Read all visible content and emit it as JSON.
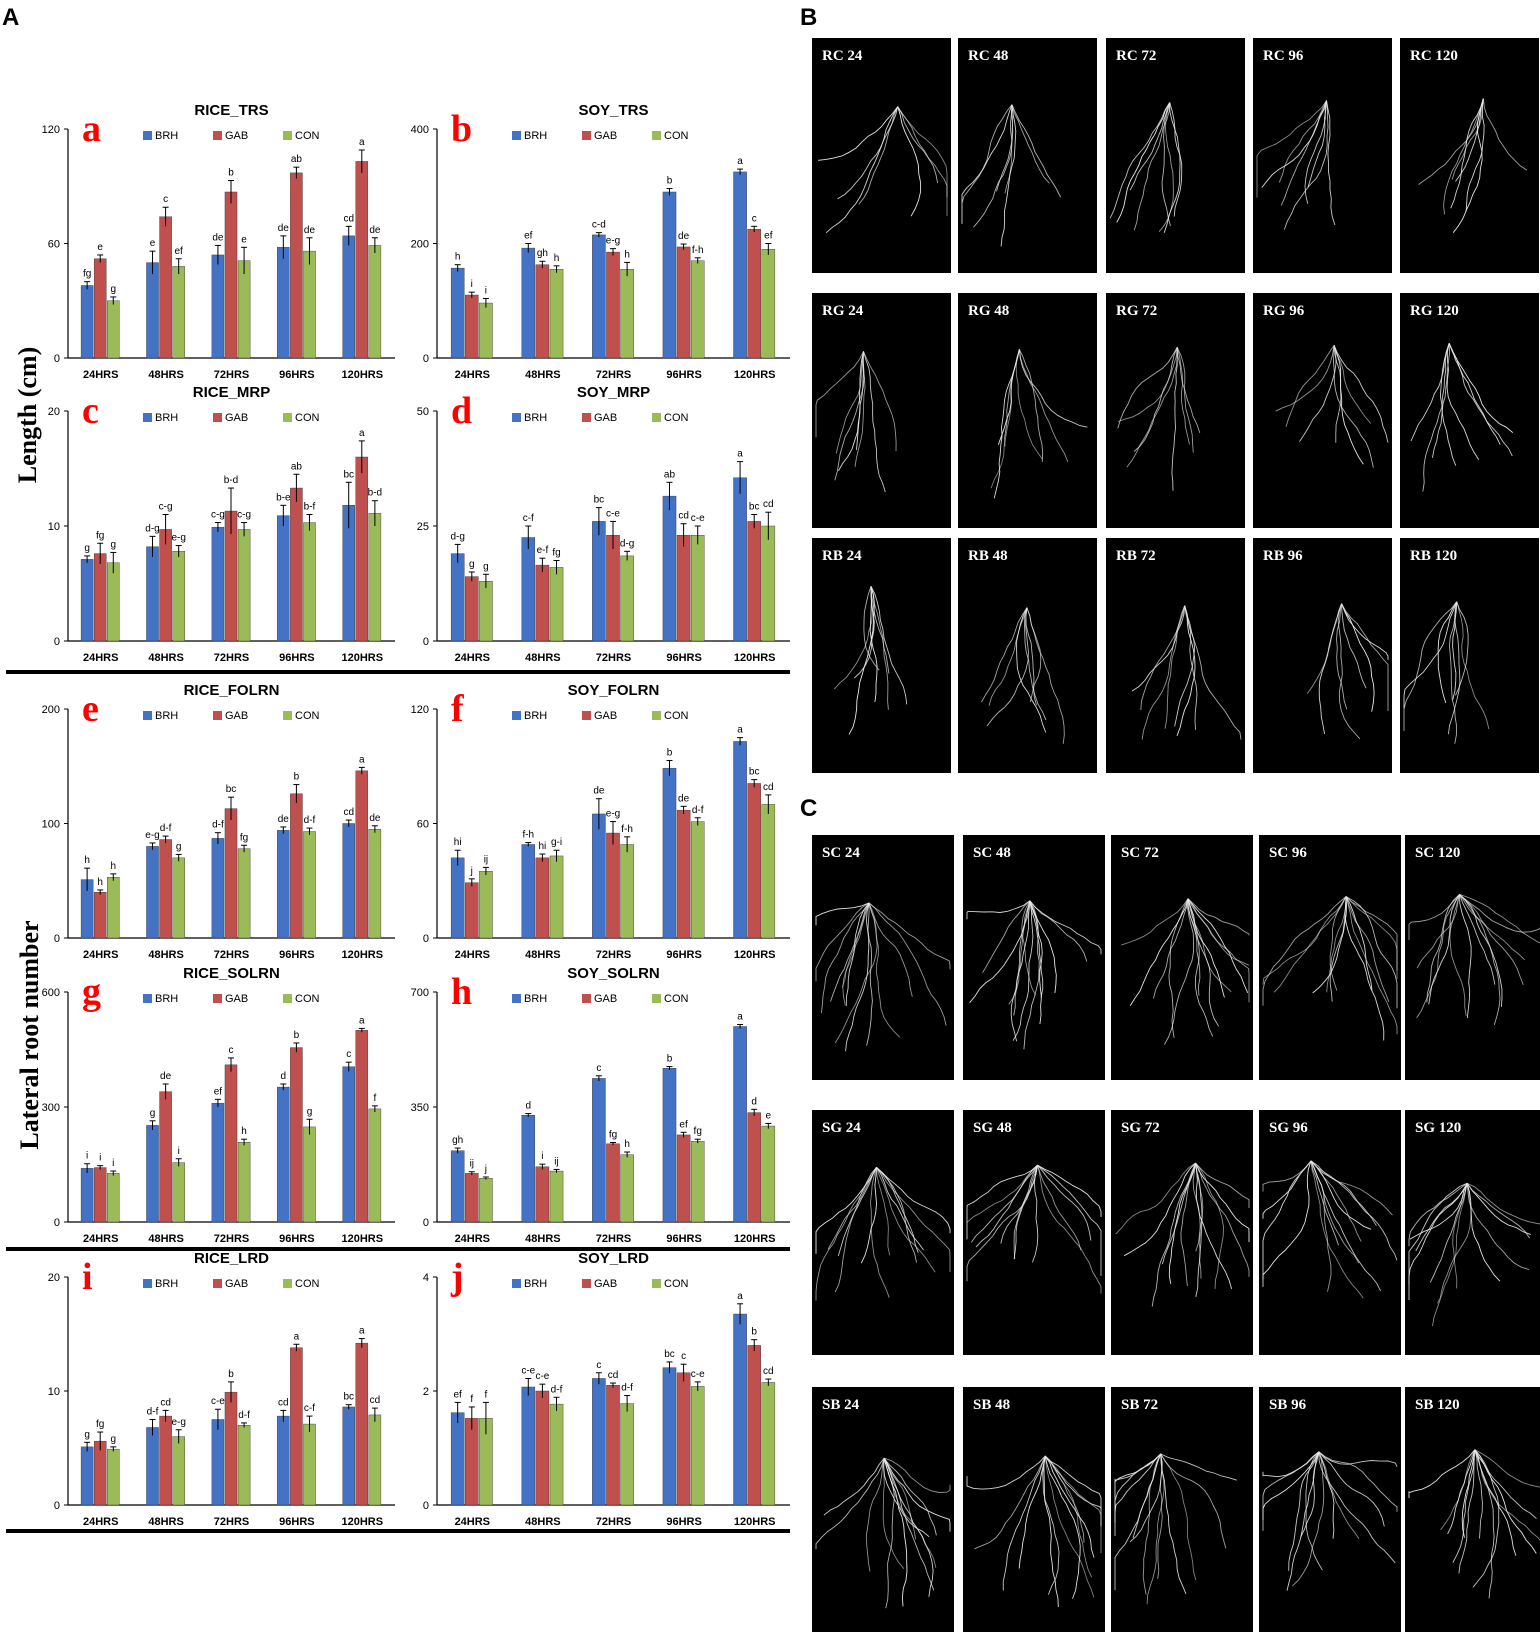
{
  "figure": {
    "panel_labels": [
      "A",
      "B",
      "C"
    ],
    "y_labels": [
      "Length (cm)",
      "Lateral root number"
    ],
    "legend": [
      "BRH",
      "GAB",
      "CON"
    ],
    "colors": {
      "BRH": "#4472C4",
      "GAB": "#C0504D",
      "CON": "#9BBB59",
      "letter": "#FF0000"
    },
    "rice_image_labels": [
      "RC 24",
      "RC 48",
      "RC 72",
      "RC 96",
      "RC 120",
      "RG 24",
      "RG 48",
      "RG 72",
      "RG 96",
      "RG 120",
      "RB 24",
      "RB 48",
      "RB 72",
      "RB 96",
      "RB 120"
    ],
    "soy_image_labels": [
      "SC 24",
      "SC 48",
      "SC 72",
      "SC 96",
      "SC 120",
      "SG 24",
      "SG 48",
      "SG 72",
      "SG 96",
      "SG 120",
      "SB 24",
      "SB 48",
      "SB 72",
      "SB 96",
      "SB 120"
    ]
  },
  "chart_data": [
    {
      "id": "a",
      "type": "bar",
      "title": "RICE_TRS",
      "categories": [
        "24HRS",
        "48HRS",
        "72HRS",
        "96HRS",
        "120HRS"
      ],
      "ylim": [
        0,
        120
      ],
      "yticks": [
        0,
        60,
        120
      ],
      "series": [
        {
          "name": "BRH",
          "values": [
            38,
            50,
            54,
            58,
            64
          ],
          "err": [
            2,
            6,
            5,
            6,
            5
          ],
          "labels": [
            "fg",
            "e",
            "de",
            "de",
            "cd"
          ]
        },
        {
          "name": "GAB",
          "values": [
            52,
            74,
            87,
            97,
            103
          ],
          "err": [
            2,
            5,
            6,
            3,
            6
          ],
          "labels": [
            "e",
            "c",
            "b",
            "ab",
            "a"
          ]
        },
        {
          "name": "CON",
          "values": [
            30,
            48,
            51,
            56,
            59
          ],
          "err": [
            2,
            4,
            7,
            7,
            4
          ],
          "labels": [
            "g",
            "ef",
            "e",
            "de",
            "de"
          ]
        }
      ]
    },
    {
      "id": "b",
      "type": "bar",
      "title": "SOY_TRS",
      "categories": [
        "24HRS",
        "48HRS",
        "72HRS",
        "96HRS",
        "120HRS"
      ],
      "ylim": [
        0,
        400
      ],
      "yticks": [
        0,
        200,
        400
      ],
      "series": [
        {
          "name": "BRH",
          "values": [
            157,
            192,
            215,
            290,
            325
          ],
          "err": [
            6,
            8,
            4,
            6,
            5
          ],
          "labels": [
            "h",
            "ef",
            "c-d",
            "b",
            "a"
          ]
        },
        {
          "name": "GAB",
          "values": [
            110,
            163,
            185,
            194,
            225
          ],
          "err": [
            5,
            6,
            6,
            5,
            5
          ],
          "labels": [
            "i",
            "gh",
            "e-g",
            "de",
            "c"
          ]
        },
        {
          "name": "CON",
          "values": [
            96,
            155,
            155,
            170,
            190
          ],
          "err": [
            8,
            6,
            12,
            5,
            10
          ],
          "labels": [
            "i",
            "h",
            "h",
            "f-h",
            "ef"
          ]
        }
      ]
    },
    {
      "id": "c",
      "type": "bar",
      "title": "RICE_MRP",
      "categories": [
        "24HRS",
        "48HRS",
        "72HRS",
        "96HRS",
        "120HRS"
      ],
      "ylim": [
        0,
        20
      ],
      "yticks": [
        0,
        10,
        20
      ],
      "series": [
        {
          "name": "BRH",
          "values": [
            7.1,
            8.2,
            9.9,
            10.9,
            11.8
          ],
          "err": [
            0.3,
            0.9,
            0.4,
            0.9,
            2.0
          ],
          "labels": [
            "g",
            "d-g",
            "c-g",
            "b-e",
            "bc"
          ]
        },
        {
          "name": "GAB",
          "values": [
            7.6,
            9.7,
            11.3,
            13.3,
            16.0
          ],
          "err": [
            0.9,
            1.3,
            2.0,
            1.2,
            1.4
          ],
          "labels": [
            "fg",
            "c-g",
            "b-d",
            "ab",
            "a"
          ]
        },
        {
          "name": "CON",
          "values": [
            6.8,
            7.8,
            9.7,
            10.3,
            11.1
          ],
          "err": [
            0.9,
            0.5,
            0.6,
            0.7,
            1.1
          ],
          "labels": [
            "g",
            "e-g",
            "c-g",
            "b-f",
            "b-d"
          ]
        }
      ]
    },
    {
      "id": "d",
      "type": "bar",
      "title": "SOY_MRP",
      "categories": [
        "24HRS",
        "48HRS",
        "72HRS",
        "96HRS",
        "120HRS"
      ],
      "ylim": [
        0,
        50
      ],
      "yticks": [
        0,
        25,
        50
      ],
      "series": [
        {
          "name": "BRH",
          "values": [
            19,
            22.5,
            26,
            31.5,
            35.5
          ],
          "err": [
            2,
            2.5,
            3,
            3,
            3.5
          ],
          "labels": [
            "d-g",
            "c-f",
            "bc",
            "ab",
            "a"
          ]
        },
        {
          "name": "GAB",
          "values": [
            14,
            16.5,
            23,
            23,
            26
          ],
          "err": [
            1,
            1.5,
            3,
            2.5,
            1.5
          ],
          "labels": [
            "g",
            "e-f",
            "c-e",
            "cd",
            "bc"
          ]
        },
        {
          "name": "CON",
          "values": [
            13,
            16,
            18.5,
            23,
            25
          ],
          "err": [
            1.5,
            1.5,
            1,
            2,
            3
          ],
          "labels": [
            "g",
            "fg",
            "d-g",
            "c-e",
            "cd"
          ]
        }
      ]
    },
    {
      "id": "e",
      "type": "bar",
      "title": "RICE_FOLRN",
      "categories": [
        "24HRS",
        "48HRS",
        "72HRS",
        "96HRS",
        "120HRS"
      ],
      "ylim": [
        0,
        200
      ],
      "yticks": [
        0,
        100,
        200
      ],
      "series": [
        {
          "name": "BRH",
          "values": [
            51,
            80,
            87,
            94,
            100
          ],
          "err": [
            10,
            3,
            5,
            3,
            3
          ],
          "labels": [
            "h",
            "e-g",
            "d-f",
            "de",
            "cd"
          ]
        },
        {
          "name": "GAB",
          "values": [
            40,
            86,
            113,
            126,
            146
          ],
          "err": [
            2,
            3,
            10,
            8,
            3
          ],
          "labels": [
            "h",
            "d-f",
            "bc",
            "b",
            "a"
          ]
        },
        {
          "name": "CON",
          "values": [
            53,
            70,
            78,
            93,
            95
          ],
          "err": [
            3,
            3,
            3,
            3,
            3
          ],
          "labels": [
            "h",
            "g",
            "fg",
            "d-f",
            "de"
          ]
        }
      ]
    },
    {
      "id": "f",
      "type": "bar",
      "title": "SOY_FOLRN",
      "categories": [
        "24HRS",
        "48HRS",
        "72HRS",
        "96HRS",
        "120HRS"
      ],
      "ylim": [
        0,
        120
      ],
      "yticks": [
        0,
        60,
        120
      ],
      "series": [
        {
          "name": "BRH",
          "values": [
            42,
            49,
            65,
            89,
            103
          ],
          "err": [
            4,
            1,
            8,
            4,
            2
          ],
          "labels": [
            "hi",
            "f-h",
            "de",
            "b",
            "a"
          ]
        },
        {
          "name": "GAB",
          "values": [
            29,
            42,
            55,
            67,
            81
          ],
          "err": [
            2,
            2,
            6,
            2,
            2
          ],
          "labels": [
            "j",
            "hi",
            "e-g",
            "de",
            "bc"
          ]
        },
        {
          "name": "CON",
          "values": [
            35,
            43,
            49,
            61,
            70
          ],
          "err": [
            2,
            3,
            4,
            2,
            5
          ],
          "labels": [
            "ij",
            "g-i",
            "f-h",
            "d-f",
            "cd"
          ]
        }
      ]
    },
    {
      "id": "g",
      "type": "bar",
      "title": "RICE_SOLRN",
      "categories": [
        "24HRS",
        "48HRS",
        "72HRS",
        "96HRS",
        "120HRS"
      ],
      "ylim": [
        0,
        600
      ],
      "yticks": [
        0,
        300,
        600
      ],
      "series": [
        {
          "name": "BRH",
          "values": [
            140,
            252,
            310,
            352,
            405
          ],
          "err": [
            12,
            12,
            10,
            8,
            12
          ],
          "labels": [
            "i",
            "g",
            "ef",
            "d",
            "c"
          ]
        },
        {
          "name": "GAB",
          "values": [
            142,
            340,
            410,
            455,
            500
          ],
          "err": [
            5,
            20,
            18,
            12,
            5
          ],
          "labels": [
            "i",
            "de",
            "c",
            "b",
            "a"
          ]
        },
        {
          "name": "CON",
          "values": [
            127,
            155,
            208,
            248,
            295
          ],
          "err": [
            6,
            10,
            8,
            20,
            8
          ],
          "labels": [
            "i",
            "i",
            "h",
            "g",
            "f"
          ]
        }
      ]
    },
    {
      "id": "h",
      "type": "bar",
      "title": "SOY_SOLRN",
      "categories": [
        "24HRS",
        "48HRS",
        "72HRS",
        "96HRS",
        "120HRS"
      ],
      "ylim": [
        0,
        700
      ],
      "yticks": [
        0,
        350,
        700
      ],
      "series": [
        {
          "name": "BRH",
          "values": [
            217,
            325,
            437,
            468,
            595
          ],
          "err": [
            8,
            5,
            8,
            5,
            6
          ],
          "labels": [
            "gh",
            "d",
            "c",
            "b",
            "a"
          ]
        },
        {
          "name": "GAB",
          "values": [
            148,
            168,
            238,
            265,
            333
          ],
          "err": [
            5,
            8,
            4,
            8,
            10
          ],
          "labels": [
            "ij",
            "i",
            "fg",
            "ef",
            "d"
          ]
        },
        {
          "name": "CON",
          "values": [
            133,
            155,
            205,
            246,
            292
          ],
          "err": [
            4,
            5,
            8,
            6,
            8
          ],
          "labels": [
            "j",
            "ij",
            "h",
            "fg",
            "e"
          ]
        }
      ]
    },
    {
      "id": "i",
      "type": "bar",
      "title": "RICE_LRD",
      "categories": [
        "24HRS",
        "48HRS",
        "72HRS",
        "96HRS",
        "120HRS"
      ],
      "ylim": [
        0,
        20
      ],
      "yticks": [
        0,
        10,
        20
      ],
      "series": [
        {
          "name": "BRH",
          "values": [
            5.1,
            6.8,
            7.5,
            7.8,
            8.6
          ],
          "err": [
            0.4,
            0.7,
            0.9,
            0.5,
            0.2
          ],
          "labels": [
            "g",
            "d-f",
            "c-e",
            "cd",
            "bc"
          ]
        },
        {
          "name": "GAB",
          "values": [
            5.6,
            7.8,
            9.9,
            13.8,
            14.2
          ],
          "err": [
            0.8,
            0.5,
            0.9,
            0.3,
            0.4
          ],
          "labels": [
            "fg",
            "cd",
            "b",
            "a",
            "a"
          ]
        },
        {
          "name": "CON",
          "values": [
            4.9,
            6.0,
            7.0,
            7.1,
            7.9
          ],
          "err": [
            0.2,
            0.6,
            0.2,
            0.7,
            0.6
          ],
          "labels": [
            "g",
            "e-g",
            "d-f",
            "c-f",
            "cd"
          ]
        }
      ]
    },
    {
      "id": "j",
      "type": "bar",
      "title": "SOY_LRD",
      "categories": [
        "24HRS",
        "48HRS",
        "72HRS",
        "96HRS",
        "120HRS"
      ],
      "ylim": [
        0,
        4
      ],
      "yticks": [
        0,
        2,
        4
      ],
      "series": [
        {
          "name": "BRH",
          "values": [
            1.62,
            2.07,
            2.22,
            2.41,
            3.35
          ],
          "err": [
            0.18,
            0.15,
            0.1,
            0.1,
            0.18
          ],
          "labels": [
            "ef",
            "c-e",
            "c",
            "bc",
            "a"
          ]
        },
        {
          "name": "GAB",
          "values": [
            1.52,
            2.0,
            2.1,
            2.32,
            2.8
          ],
          "err": [
            0.2,
            0.12,
            0.04,
            0.15,
            0.1
          ],
          "labels": [
            "f",
            "c-e",
            "cd",
            "c",
            "b"
          ]
        },
        {
          "name": "CON",
          "values": [
            1.52,
            1.77,
            1.78,
            2.08,
            2.15
          ],
          "err": [
            0.28,
            0.12,
            0.14,
            0.08,
            0.06
          ],
          "labels": [
            "f",
            "d-f",
            "d-f",
            "c-e",
            "cd"
          ]
        }
      ]
    }
  ]
}
